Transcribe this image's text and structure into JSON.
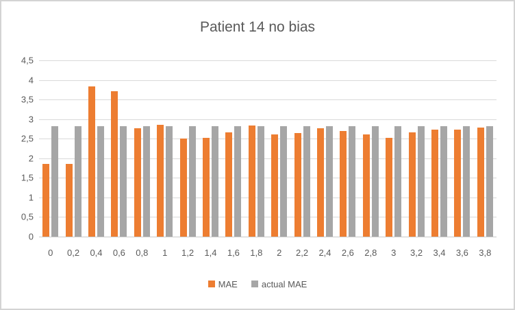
{
  "chart_data": {
    "type": "bar",
    "title": "Patient 14 no bias",
    "categories": [
      "0",
      "0,2",
      "0,4",
      "0,6",
      "0,8",
      "1",
      "1,2",
      "1,4",
      "1,6",
      "1,8",
      "2",
      "2,2",
      "2,4",
      "2,6",
      "2,8",
      "3",
      "3,2",
      "3,4",
      "3,6",
      "3,8"
    ],
    "series": [
      {
        "name": "MAE",
        "color": "#ED7D31",
        "values": [
          1.86,
          1.85,
          3.83,
          3.72,
          2.77,
          2.85,
          2.5,
          2.52,
          2.66,
          2.83,
          2.61,
          2.65,
          2.76,
          2.7,
          2.61,
          2.53,
          2.66,
          2.73,
          2.74,
          2.78
        ]
      },
      {
        "name": "actual MAE",
        "color": "#A6A6A6",
        "values": [
          2.82,
          2.82,
          2.82,
          2.82,
          2.82,
          2.82,
          2.82,
          2.82,
          2.82,
          2.82,
          2.82,
          2.82,
          2.82,
          2.82,
          2.82,
          2.82,
          2.82,
          2.82,
          2.82,
          2.82
        ]
      }
    ],
    "xlabel": "",
    "ylabel": "",
    "ylim": [
      0,
      4.5
    ],
    "ytick_step": 0.5,
    "ytick_labels": [
      "0",
      "0,5",
      "1",
      "1,5",
      "2",
      "2,5",
      "3",
      "3,5",
      "4",
      "4,5"
    ],
    "grid": true,
    "legend_position": "bottom"
  },
  "colors": {
    "background": "#FFFFFF",
    "frame_border": "#D3D3D3",
    "gridline": "#D9D9D9",
    "axis_line": "#C9C9C9",
    "text": "#595959"
  }
}
